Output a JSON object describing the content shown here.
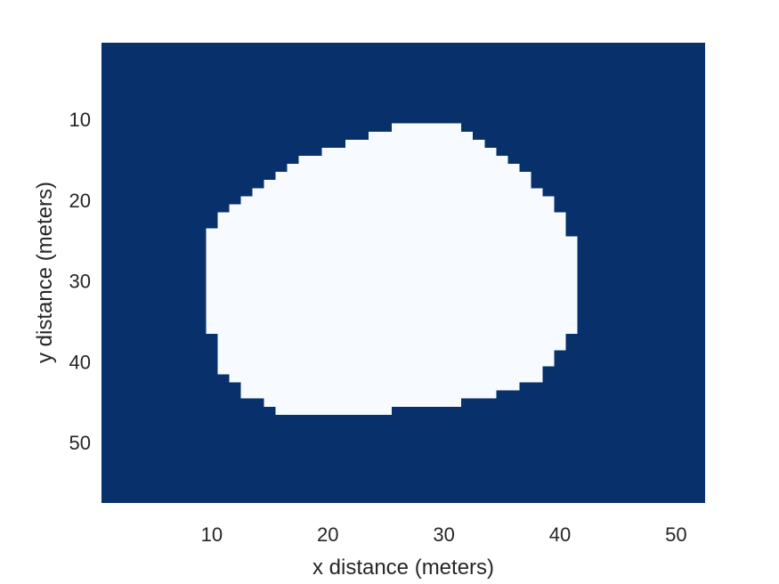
{
  "chart_data": {
    "type": "heatmap",
    "title": "",
    "xlabel": "x distance (meters)",
    "ylabel": "y distance (meters)",
    "xlim": [
      0.5,
      52.5
    ],
    "ylim": [
      0.5,
      57.5
    ],
    "y_reversed": true,
    "xticks": [
      10,
      20,
      30,
      40,
      50
    ],
    "yticks": [
      10,
      20,
      30,
      40,
      50
    ],
    "grid": false,
    "legend": "none",
    "colors": {
      "background": "#08306b",
      "region": "#f7fbff",
      "axis": "#262626"
    },
    "values_description_note_removed": null,
    "region_rows": [
      {
        "y": 11,
        "x_from": 26,
        "x_to": 31
      },
      {
        "y": 12,
        "x_from": 24,
        "x_to": 32
      },
      {
        "y": 13,
        "x_from": 22,
        "x_to": 33
      },
      {
        "y": 14,
        "x_from": 20,
        "x_to": 34
      },
      {
        "y": 15,
        "x_from": 18,
        "x_to": 35
      },
      {
        "y": 16,
        "x_from": 17,
        "x_to": 36
      },
      {
        "y": 17,
        "x_from": 16,
        "x_to": 37
      },
      {
        "y": 18,
        "x_from": 15,
        "x_to": 37
      },
      {
        "y": 19,
        "x_from": 14,
        "x_to": 38
      },
      {
        "y": 20,
        "x_from": 13,
        "x_to": 39
      },
      {
        "y": 21,
        "x_from": 12,
        "x_to": 39
      },
      {
        "y": 22,
        "x_from": 11,
        "x_to": 40
      },
      {
        "y": 23,
        "x_from": 11,
        "x_to": 40
      },
      {
        "y": 24,
        "x_from": 10,
        "x_to": 40
      },
      {
        "y": 25,
        "x_from": 10,
        "x_to": 41
      },
      {
        "y": 26,
        "x_from": 10,
        "x_to": 41
      },
      {
        "y": 27,
        "x_from": 10,
        "x_to": 41
      },
      {
        "y": 28,
        "x_from": 10,
        "x_to": 41
      },
      {
        "y": 29,
        "x_from": 10,
        "x_to": 41
      },
      {
        "y": 30,
        "x_from": 10,
        "x_to": 41
      },
      {
        "y": 31,
        "x_from": 10,
        "x_to": 41
      },
      {
        "y": 32,
        "x_from": 10,
        "x_to": 41
      },
      {
        "y": 33,
        "x_from": 10,
        "x_to": 41
      },
      {
        "y": 34,
        "x_from": 10,
        "x_to": 41
      },
      {
        "y": 35,
        "x_from": 10,
        "x_to": 41
      },
      {
        "y": 36,
        "x_from": 10,
        "x_to": 41
      },
      {
        "y": 37,
        "x_from": 11,
        "x_to": 40
      },
      {
        "y": 38,
        "x_from": 11,
        "x_to": 40
      },
      {
        "y": 39,
        "x_from": 11,
        "x_to": 39
      },
      {
        "y": 40,
        "x_from": 11,
        "x_to": 39
      },
      {
        "y": 41,
        "x_from": 11,
        "x_to": 38
      },
      {
        "y": 42,
        "x_from": 12,
        "x_to": 38
      },
      {
        "y": 43,
        "x_from": 13,
        "x_to": 36
      },
      {
        "y": 44,
        "x_from": 13,
        "x_to": 34
      },
      {
        "y": 45,
        "x_from": 15,
        "x_to": 31
      },
      {
        "y": 46,
        "x_from": 16,
        "x_to": 25
      }
    ]
  }
}
